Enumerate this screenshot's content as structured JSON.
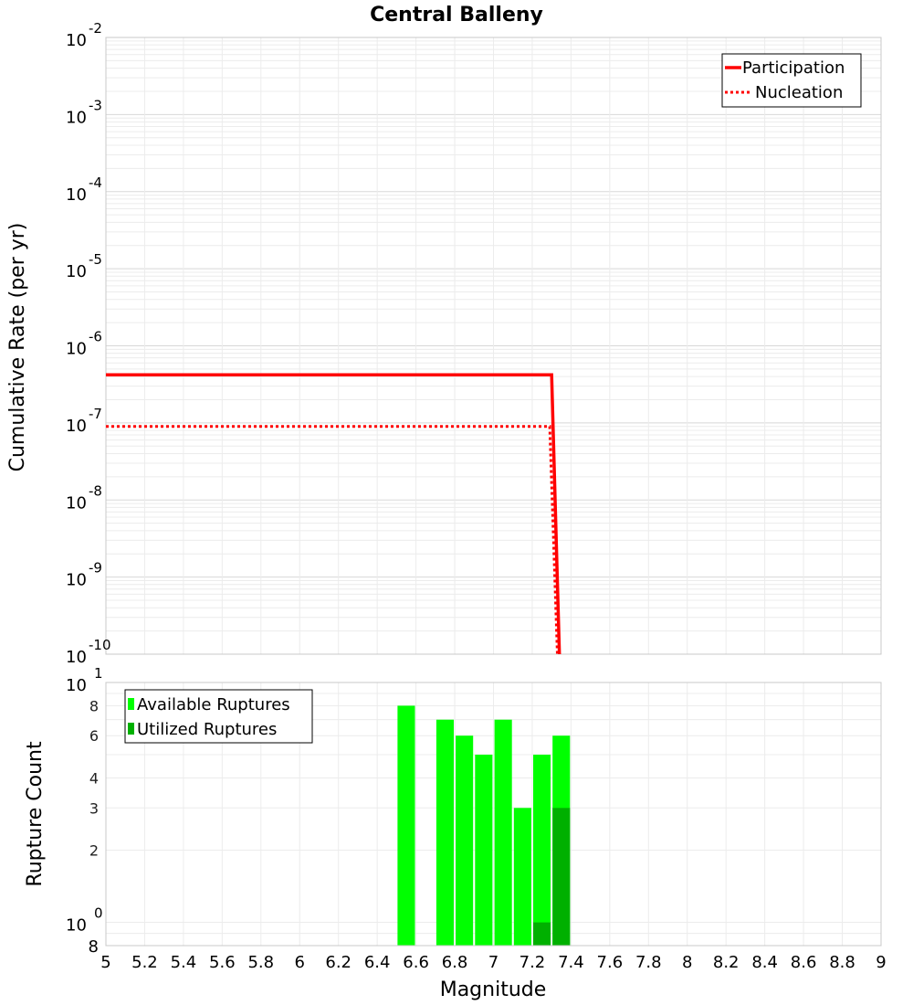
{
  "chart_data": [
    {
      "type": "line",
      "title": "Central Balleny",
      "xlabel": "Magnitude",
      "ylabel": "Cumulative Rate (per yr)",
      "yscale": "log",
      "xlim": [
        5,
        9
      ],
      "ylim": [
        1e-10,
        0.01
      ],
      "y_tick_labels": [
        {
          "base": "10",
          "exp": "-2",
          "value": 0.01
        },
        {
          "base": "10",
          "exp": "-3",
          "value": 0.001
        },
        {
          "base": "10",
          "exp": "-4",
          "value": 0.0001
        },
        {
          "base": "10",
          "exp": "-5",
          "value": 1e-05
        },
        {
          "base": "10",
          "exp": "-6",
          "value": 1e-06
        },
        {
          "base": "10",
          "exp": "-7",
          "value": 1e-07
        },
        {
          "base": "10",
          "exp": "-8",
          "value": 1e-08
        },
        {
          "base": "10",
          "exp": "-9",
          "value": 1e-09
        },
        {
          "base": "10",
          "exp": "-10",
          "value": 1e-10
        }
      ],
      "legend_position": "top-right",
      "series": [
        {
          "name": "Participation",
          "color": "#ff0000",
          "style": "solid",
          "x": [
            5.0,
            7.3,
            7.34
          ],
          "y": [
            4.2e-07,
            4.2e-07,
            1e-10
          ]
        },
        {
          "name": "Nucleation",
          "color": "#ff0000",
          "style": "dotted",
          "x": [
            5.0,
            7.29,
            7.33
          ],
          "y": [
            9e-08,
            9e-08,
            1e-10
          ]
        }
      ]
    },
    {
      "type": "bar",
      "xlabel": "Magnitude",
      "ylabel": "Rupture Count",
      "yscale": "log",
      "xlim": [
        5,
        9
      ],
      "ylim": [
        0.8,
        10
      ],
      "bar_width": 0.09,
      "x_ticks": [
        "5",
        "5.2",
        "5.4",
        "5.6",
        "5.8",
        "6",
        "6.2",
        "6.4",
        "6.6",
        "6.8",
        "7",
        "7.2",
        "7.4",
        "7.6",
        "7.8",
        "8",
        "8.2",
        "8.4",
        "8.6",
        "8.8",
        "9"
      ],
      "y_major_tick_labels": [
        {
          "base": "10",
          "exp": "1",
          "value": 10
        },
        {
          "base": "10",
          "exp": "0",
          "value": 1
        }
      ],
      "y_minor_tick_labels": [
        {
          "label": "8",
          "value": 8
        },
        {
          "label": "6",
          "value": 6
        },
        {
          "label": "4",
          "value": 4
        },
        {
          "label": "3",
          "value": 3
        },
        {
          "label": "2",
          "value": 2
        },
        {
          "label": "8",
          "value": 0.8
        }
      ],
      "legend_position": "top-left",
      "series": [
        {
          "name": "Available Ruptures",
          "color": "#00ff00",
          "x": [
            6.55,
            6.75,
            6.85,
            6.95,
            7.05,
            7.15,
            7.25,
            7.35
          ],
          "values": [
            8,
            7,
            6,
            5,
            7,
            3,
            5,
            6
          ]
        },
        {
          "name": "Utilized Ruptures",
          "color": "#00b000",
          "x": [
            7.25,
            7.35
          ],
          "values": [
            1,
            3
          ]
        }
      ]
    }
  ]
}
